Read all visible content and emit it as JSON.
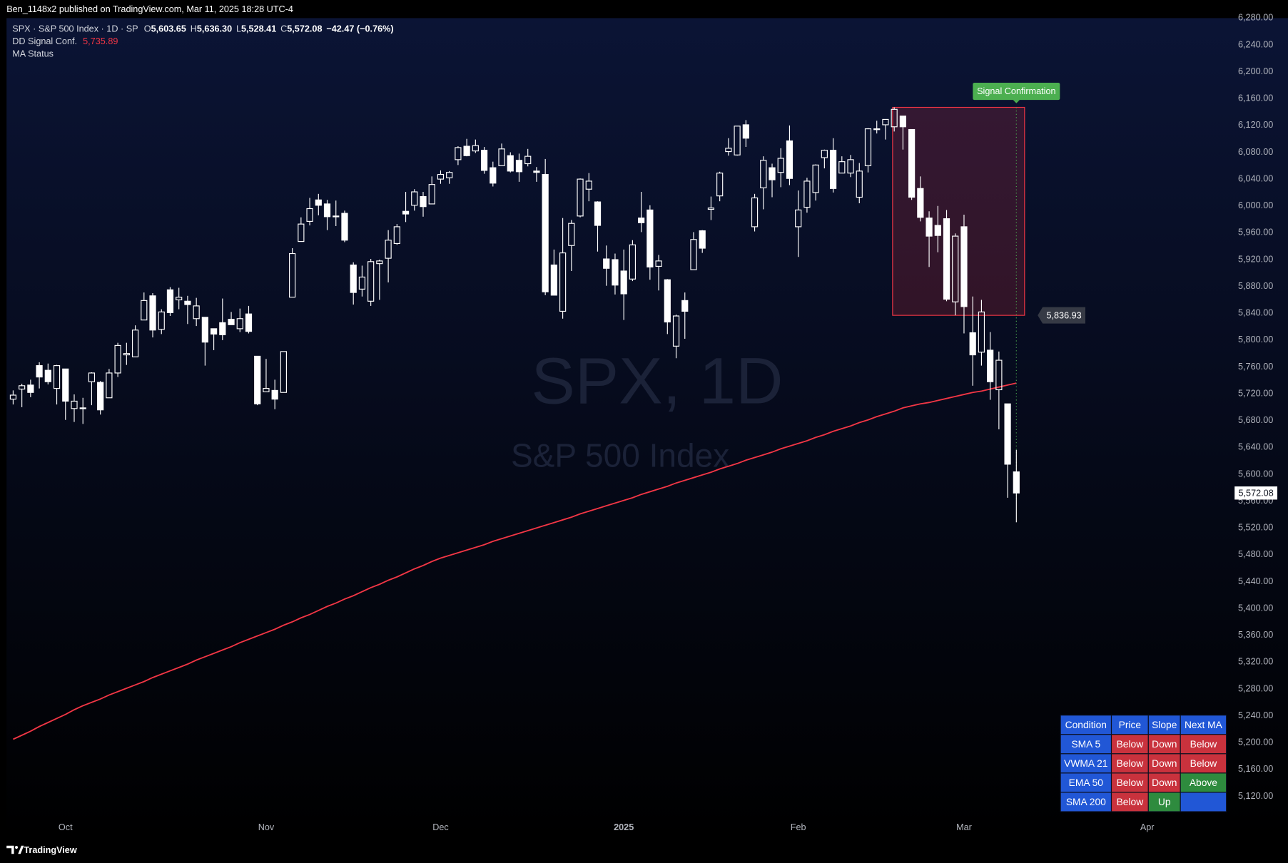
{
  "header": {
    "publisher": "Ben_1148x2 published on TradingView.com, Mar 11, 2025 18:28 UTC-4"
  },
  "legend": {
    "symbol": "SPX · S&P 500 Index · 1D · SP",
    "open_key": "O",
    "open": "5,603.65",
    "high_key": "H",
    "high": "5,636.30",
    "low_key": "L",
    "low": "5,528.41",
    "close_key": "C",
    "close": "5,572.08",
    "change": "−42.47 (−0.76%)",
    "indicator_2": "MA Status"
  },
  "watermark": {
    "title": "SPX, 1D",
    "subtitle": "S&P 500 Index"
  },
  "footer": {
    "brand": "TradingView"
  },
  "chart_data": {
    "type": "candlestick",
    "up_color": "#ffffff",
    "down_color": "#ffffff",
    "hollow_up": true,
    "grid": false,
    "categories": [
      null,
      null,
      null,
      null,
      null,
      null,
      "Oct",
      null,
      null,
      null,
      null,
      null,
      null,
      null,
      null,
      null,
      null,
      null,
      null,
      null,
      null,
      null,
      null,
      null,
      null,
      null,
      null,
      null,
      null,
      "Nov",
      null,
      null,
      null,
      null,
      null,
      null,
      null,
      null,
      null,
      null,
      null,
      null,
      null,
      null,
      null,
      null,
      null,
      null,
      null,
      "Dec",
      null,
      null,
      null,
      null,
      null,
      null,
      null,
      null,
      null,
      null,
      null,
      null,
      null,
      null,
      null,
      null,
      null,
      null,
      null,
      null,
      "2025",
      null,
      null,
      null,
      null,
      null,
      null,
      null,
      null,
      null,
      null,
      null,
      null,
      null,
      null,
      null,
      null,
      null,
      null,
      null,
      "Feb",
      null,
      null,
      null,
      null,
      null,
      null,
      null,
      null,
      null,
      null,
      null,
      null,
      null,
      null,
      null,
      null,
      null,
      null,
      "Mar",
      null,
      null,
      null,
      null,
      null,
      null,
      null,
      null,
      null,
      null,
      null,
      null,
      null,
      null,
      null,
      null,
      null,
      null,
      null,
      null,
      "Apr"
    ],
    "open": [
      5712,
      5727,
      5733,
      5762,
      5755,
      5728,
      5757,
      5698,
      5698,
      5738,
      5737,
      5714,
      5751,
      5778,
      5775,
      5830,
      5866,
      5816,
      5875,
      5860,
      5858,
      5832,
      5834,
      5817,
      5826,
      5831,
      5817,
      5839,
      5776,
      5723,
      5725,
      5722,
      5864,
      5947,
      5977,
      6009,
      6003,
      5985,
      5989,
      5912,
      5876,
      5858,
      5914,
      5922,
      5944,
      5992,
      6001,
      6014,
      6003,
      6040,
      6042,
      6069,
      6089,
      6082,
      6083,
      6057,
      6060,
      6075,
      6068,
      6063,
      6052,
      6047,
      5912,
      5843,
      5941,
      5985,
      6025,
      6006,
      5921,
      5920,
      5903,
      5891,
      5982,
      5994,
      5910,
      5890,
      5791,
      5859,
      5905,
      5963,
      5995,
      6015,
      6081,
      6076,
      6121,
      5969,
      6027,
      6057,
      6050,
      6097,
      5969,
      5998,
      6020,
      6072,
      6083,
      6049,
      6049,
      6013,
      6060,
      6115,
      6121,
      6118,
      6134,
      6114,
      6026,
      5982,
      5971,
      5981,
      5857,
      5969,
      5811,
      5782,
      5785,
      5726,
      5705,
      5603.65,
      null,
      null,
      null,
      null,
      null,
      null,
      null,
      null,
      null,
      null,
      null,
      null,
      null,
      null,
      null
    ],
    "high": [
      5725,
      5735,
      5741,
      5767,
      5765,
      5763,
      5757,
      5719,
      5714,
      5752,
      5739,
      5757,
      5796,
      5796,
      5822,
      5871,
      5870,
      5846,
      5879,
      5878,
      5866,
      5863,
      5834,
      5817,
      5862,
      5842,
      5847,
      5851,
      5776,
      5772,
      5741,
      5783,
      5937,
      5983,
      6012,
      6018,
      6009,
      6008,
      5993,
      5916,
      5911,
      5921,
      5920,
      5964,
      5973,
      6021,
      6025,
      6021,
      6044,
      6053,
      6052,
      6089,
      6100,
      6099,
      6088,
      6066,
      6093,
      6080,
      6078,
      6085,
      6058,
      6070,
      5935,
      5982,
      5979,
      6041,
      6049,
      6007,
      5941,
      5929,
      5935,
      5949,
      6021,
      6001,
      5927,
      5891,
      5838,
      5871,
      5961,
      5964,
      6014,
      6051,
      6101,
      6119,
      6128,
      6018,
      6074,
      6063,
      6086,
      6120,
      6023,
      6042,
      6062,
      6084,
      6101,
      6074,
      6076,
      6064,
      6116,
      6127,
      6129,
      6147,
      6134,
      6114,
      6044,
      5992,
      6000,
      5994,
      5959,
      5987,
      5865,
      5860,
      5812,
      5783,
      5705,
      5636.3,
      null,
      null,
      null,
      null,
      null,
      null,
      null,
      null,
      null,
      null,
      null,
      null,
      null,
      null,
      null
    ],
    "low": [
      5704,
      5700,
      5715,
      5728,
      5734,
      5704,
      5681,
      5678,
      5675,
      5703,
      5689,
      5714,
      5745,
      5763,
      5775,
      5830,
      5804,
      5809,
      5836,
      5846,
      5824,
      5821,
      5762,
      5785,
      5800,
      5823,
      5812,
      5810,
      5703,
      5723,
      5697,
      5722,
      5864,
      5947,
      5971,
      5986,
      5964,
      5970,
      5946,
      5853,
      5865,
      5851,
      5860,
      5886,
      5942,
      5976,
      5993,
      5984,
      6003,
      6033,
      6033,
      6061,
      6074,
      6079,
      6048,
      6029,
      6060,
      6050,
      6036,
      6059,
      6036,
      5867,
      5867,
      5832,
      5903,
      5983,
      6007,
      5932,
      5881,
      5868,
      5830,
      5888,
      5961,
      5890,
      5874,
      5809,
      5773,
      5802,
      5905,
      5930,
      5979,
      6007,
      6075,
      6075,
      6088,
      5962,
      5995,
      6013,
      6028,
      6031,
      5924,
      5990,
      6008,
      6056,
      6020,
      6049,
      6043,
      6004,
      6050,
      6108,
      6099,
      6111,
      6084,
      6009,
      5977,
      5909,
      5931,
      5858,
      5837,
      5810,
      5732,
      5762,
      5711,
      5667,
      5565,
      5528.41,
      null,
      null,
      null,
      null,
      null,
      null,
      null,
      null,
      null,
      null,
      null,
      null,
      null,
      null,
      null
    ],
    "close": [
      5718,
      5732,
      5722,
      5745,
      5738,
      5762,
      5709,
      5709,
      5699,
      5751,
      5696,
      5751,
      5792,
      5780,
      5815,
      5859,
      5815,
      5842,
      5841,
      5864,
      5853,
      5851,
      5797,
      5809,
      5808,
      5823,
      5832,
      5813,
      5705,
      5728,
      5712,
      5783,
      5929,
      5973,
      5996,
      6001,
      5984,
      5985,
      5949,
      5871,
      5894,
      5917,
      5918,
      5949,
      5969,
      5988,
      6021,
      5999,
      6032,
      6047,
      6050,
      6087,
      6075,
      6090,
      6053,
      6034,
      6085,
      6052,
      6051,
      6074,
      6050,
      5872,
      5867,
      5930,
      5974,
      6040,
      6037,
      5971,
      5907,
      5882,
      5869,
      5942,
      5975,
      5909,
      5918,
      5827,
      5836,
      5843,
      5950,
      5937,
      5997,
      6049,
      6086,
      6119,
      6101,
      6012,
      6068,
      6039,
      6071,
      6041,
      5994,
      6037,
      6061,
      6083,
      6026,
      6066,
      6069,
      6052,
      6115,
      6115,
      6129,
      6144,
      6118,
      6013,
      5983,
      5955,
      5956,
      5861,
      5955,
      5850,
      5778,
      5842,
      5738,
      5770,
      5615,
      5572.08,
      null,
      null,
      null,
      null,
      null,
      null,
      null,
      null,
      null,
      null,
      null,
      null,
      null,
      null,
      null
    ],
    "series": [
      {
        "name": "DD Signal Conf.",
        "color": "#f23645",
        "last_value_label": "5,735.89",
        "values": [
          5205,
          5211,
          5217,
          5224,
          5230,
          5236,
          5242,
          5249,
          5255,
          5260,
          5265,
          5271,
          5276,
          5281,
          5286,
          5291,
          5297,
          5302,
          5307,
          5312,
          5317,
          5323,
          5328,
          5333,
          5338,
          5343,
          5349,
          5354,
          5359,
          5364,
          5369,
          5375,
          5380,
          5386,
          5391,
          5397,
          5403,
          5408,
          5414,
          5419,
          5425,
          5431,
          5436,
          5442,
          5447,
          5453,
          5459,
          5464,
          5470,
          5475,
          5479,
          5483,
          5487,
          5491,
          5495,
          5500,
          5504,
          5508,
          5512,
          5516,
          5520,
          5524,
          5528,
          5532,
          5536,
          5541,
          5545,
          5549,
          5553,
          5557,
          5561,
          5565,
          5570,
          5574,
          5578,
          5582,
          5587,
          5591,
          5595,
          5599,
          5603,
          5608,
          5612,
          5616,
          5621,
          5625,
          5629,
          5633,
          5638,
          5642,
          5646,
          5650,
          5655,
          5659,
          5664,
          5668,
          5672,
          5677,
          5681,
          5686,
          5690,
          5694,
          5699,
          5702,
          5705,
          5707,
          5710,
          5713,
          5716,
          5719,
          5722,
          5724,
          5727,
          5730,
          5733,
          5735.89,
          null,
          null,
          null,
          null,
          null,
          null,
          null,
          null,
          null,
          null,
          null,
          null,
          null,
          null,
          null
        ]
      }
    ],
    "signal_box": {
      "label": "Signal Confirmation",
      "top": 6147,
      "bottom": 5836.93,
      "bottom_label": "5,836.93",
      "color": "#f23645",
      "label_color": "#4caf50"
    },
    "ylim": [
      5061,
      6280
    ],
    "yticks": [
      {
        "value": 5120,
        "label": "5,120.00"
      },
      {
        "value": 5160,
        "label": "5,160.00"
      },
      {
        "value": 5200,
        "label": "5,200.00"
      },
      {
        "value": 5240,
        "label": "5,240.00"
      },
      {
        "value": 5280,
        "label": "5,280.00"
      },
      {
        "value": 5320,
        "label": "5,320.00"
      },
      {
        "value": 5360,
        "label": "5,360.00"
      },
      {
        "value": 5400,
        "label": "5,400.00"
      },
      {
        "value": 5440,
        "label": "5,440.00"
      },
      {
        "value": 5480,
        "label": "5,480.00"
      },
      {
        "value": 5520,
        "label": "5,520.00"
      },
      {
        "value": 5560,
        "label": "5,560.00"
      },
      {
        "value": 5600,
        "label": "5,600.00"
      },
      {
        "value": 5640,
        "label": "5,640.00"
      },
      {
        "value": 5680,
        "label": "5,680.00"
      },
      {
        "value": 5720,
        "label": "5,720.00"
      },
      {
        "value": 5760,
        "label": "5,760.00"
      },
      {
        "value": 5800,
        "label": "5,800.00"
      },
      {
        "value": 5840,
        "label": "5,840.00"
      },
      {
        "value": 5880,
        "label": "5,880.00"
      },
      {
        "value": 5920,
        "label": "5,920.00"
      },
      {
        "value": 5960,
        "label": "5,960.00"
      },
      {
        "value": 6000,
        "label": "6,000.00"
      },
      {
        "value": 6040,
        "label": "6,040.00"
      },
      {
        "value": 6080,
        "label": "6,080.00"
      },
      {
        "value": 6120,
        "label": "6,120.00"
      },
      {
        "value": 6160,
        "label": "6,160.00"
      },
      {
        "value": 6200,
        "label": "6,200.00"
      },
      {
        "value": 6240,
        "label": "6,240.00"
      },
      {
        "value": 6280,
        "label": "6,280.00"
      }
    ]
  },
  "table": {
    "header": [
      "Condition",
      "Price",
      "Slope",
      "Next MA"
    ],
    "rows": [
      [
        "SMA 5",
        "Below",
        "Down",
        "Below"
      ],
      [
        "VWMA 21",
        "Below",
        "Down",
        "Below"
      ],
      [
        "EMA 50",
        "Below",
        "Down",
        "Above"
      ],
      [
        "SMA 200",
        "Below",
        "Up",
        null
      ]
    ],
    "header_color": "#2157d6",
    "cell_colors": [
      [
        "#2157d6",
        "#c9323d",
        "#c9323d",
        "#c9323d"
      ],
      [
        "#2157d6",
        "#c9323d",
        "#c9323d",
        "#c9323d"
      ],
      [
        "#2157d6",
        "#c9323d",
        "#c9323d",
        "#2e8b3e"
      ],
      [
        "#2157d6",
        "#c9323d",
        "#2e8b3e",
        "#2157d6"
      ]
    ]
  }
}
